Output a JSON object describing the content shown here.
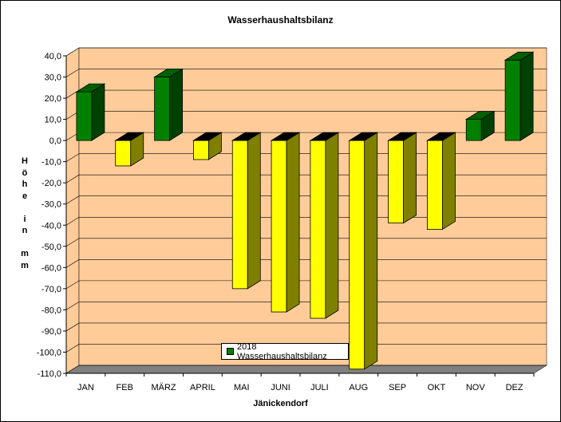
{
  "chart_data": {
    "type": "bar",
    "title": "Wasserhaushaltsbilanz",
    "xlabel": "Jänickendorf",
    "ylabel": "Höhe in mm",
    "ylabel_chars": [
      "H",
      "ö",
      "h",
      "e",
      "",
      "i",
      "n",
      "",
      "m",
      "m"
    ],
    "categories": [
      "JAN",
      "FEB",
      "MÄRZ",
      "APRIL",
      "MAI",
      "JUNI",
      "JULI",
      "AUG",
      "SEP",
      "OKT",
      "NOV",
      "DEZ"
    ],
    "series": [
      {
        "name": "2018 Wasserhaushaltsbilanz",
        "values": [
          23,
          -12,
          30,
          -9,
          -70,
          -81,
          -84,
          -108,
          -39,
          -42,
          10,
          38
        ]
      }
    ],
    "ylim": [
      -110,
      40
    ],
    "ytick_step": 10,
    "ytick_labels": [
      "40,0",
      "30,0",
      "20,0",
      "10,0",
      "0,0",
      "-10,0",
      "-20,0",
      "-30,0",
      "-40,0",
      "-50,0",
      "-60,0",
      "-70,0",
      "-80,0",
      "-90,0",
      "-100,0",
      "-110,0"
    ],
    "grid": true,
    "legend_position": "bottom-center",
    "style": "3d-bar",
    "colors": {
      "positive": "#008000",
      "negative": "#ffff00",
      "wall": "#ffcc99",
      "floor": "#808080"
    }
  }
}
